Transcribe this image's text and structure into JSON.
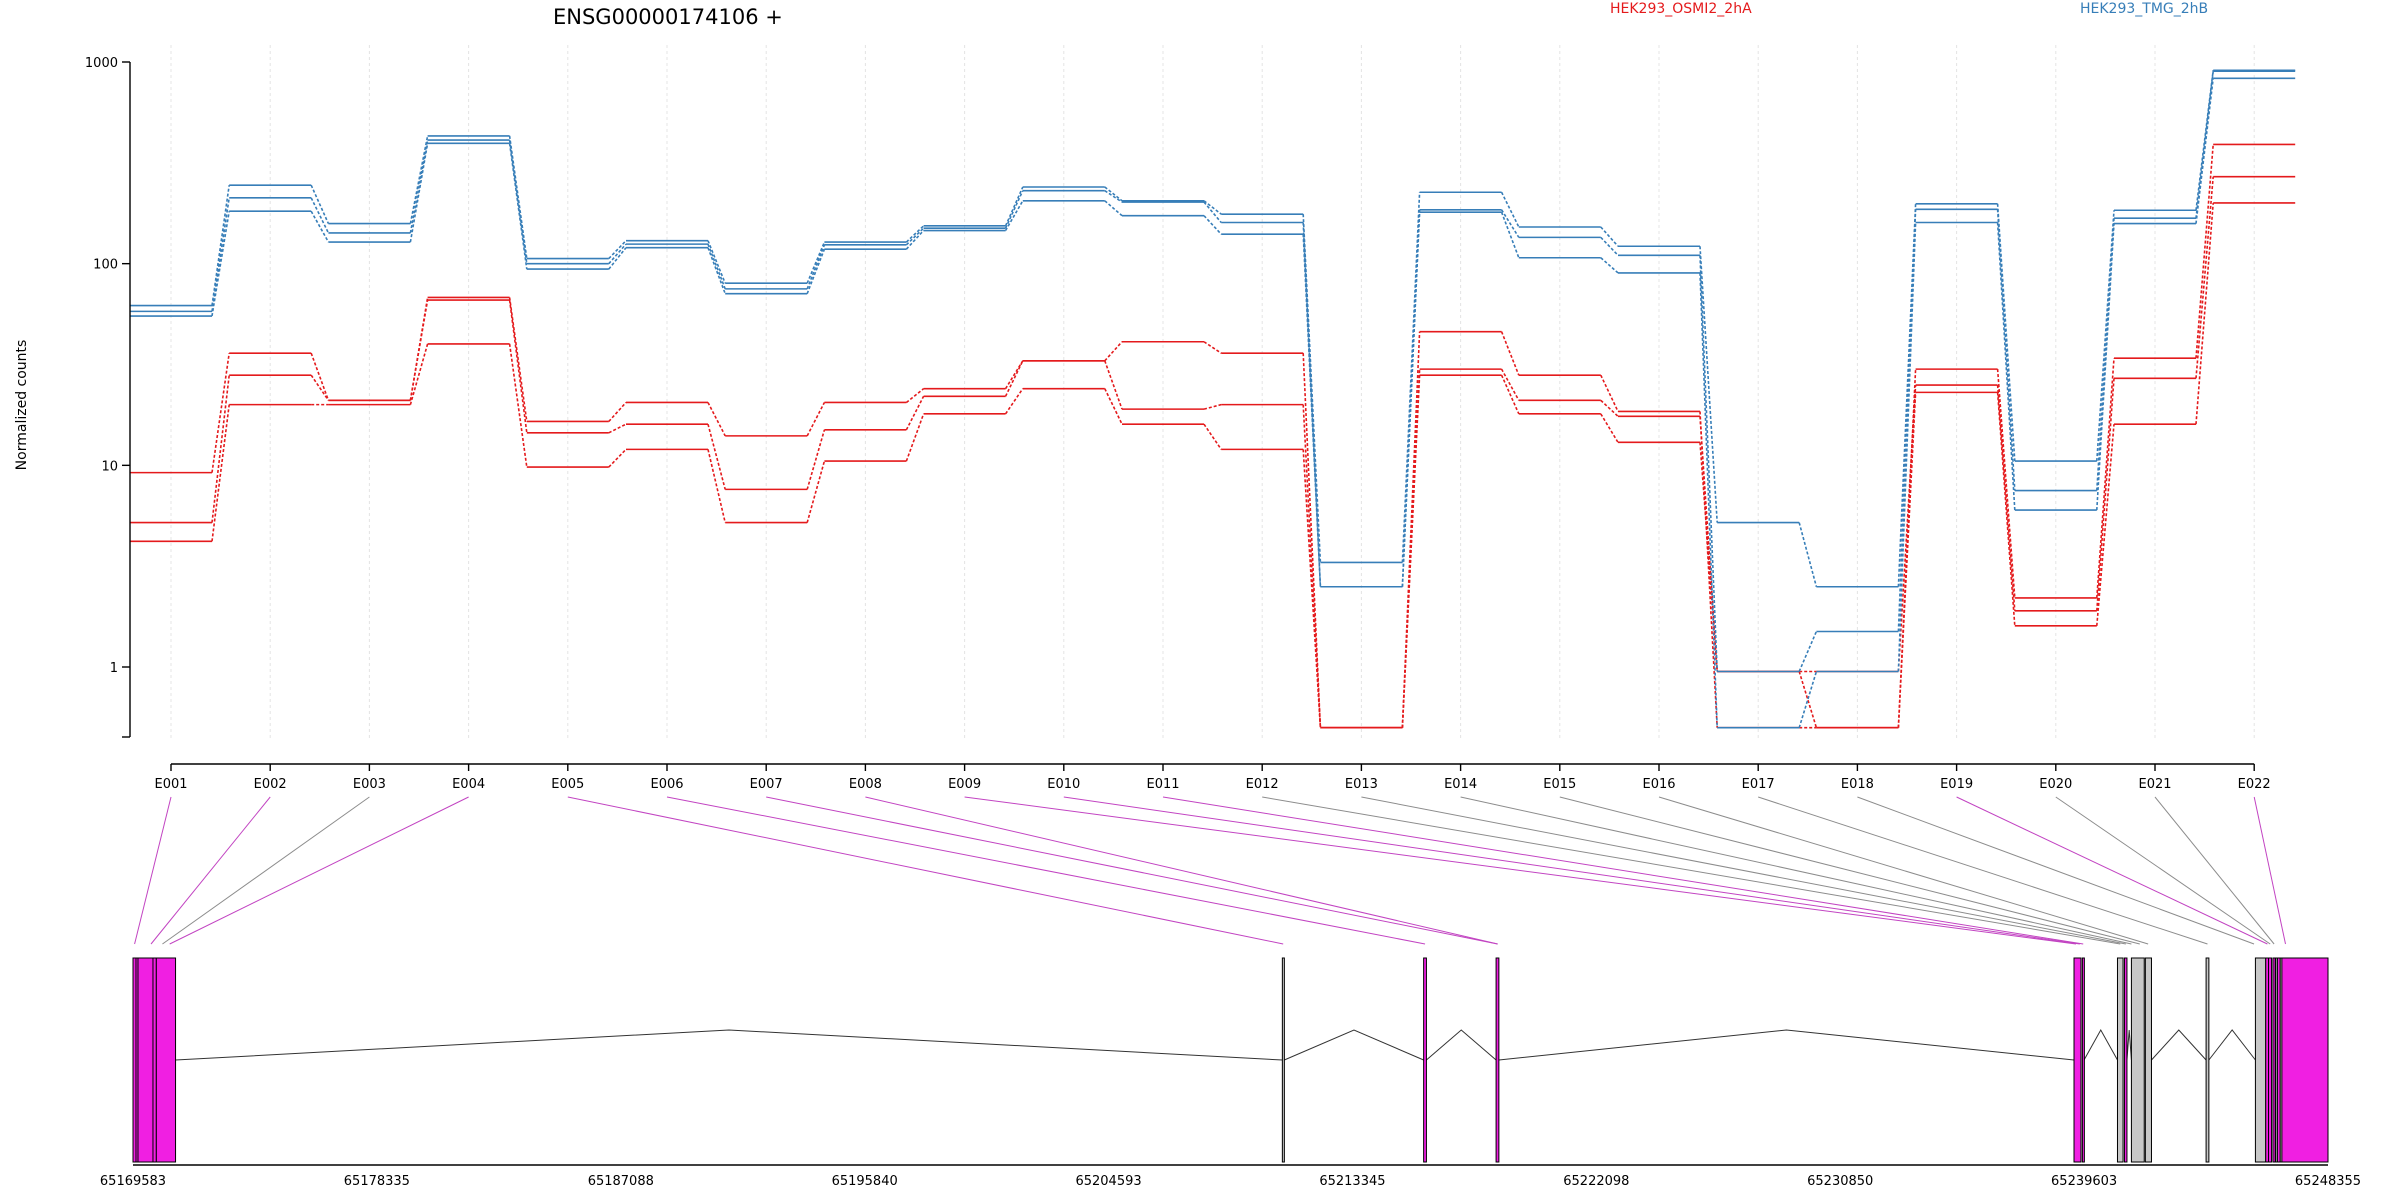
{
  "chart_data": {
    "type": "line",
    "title": "ENSG00000174106 +",
    "ylabel": "Normalized counts",
    "xlabel": "",
    "yscale": "log",
    "ylim": [
      0.5,
      1000
    ],
    "yticks": [
      "1",
      "10",
      "100",
      "1000"
    ],
    "grid": "vertical dashed at each exon",
    "legend_placement": "top-right",
    "categories": [
      "E001",
      "E002",
      "E003",
      "E004",
      "E005",
      "E006",
      "E007",
      "E008",
      "E009",
      "E010",
      "E011",
      "E012",
      "E013",
      "E014",
      "E015",
      "E016",
      "E017",
      "E018",
      "E019",
      "E020",
      "E021",
      "E022"
    ],
    "series_groups": [
      {
        "name": "HEK293_OSMI2_2hA",
        "color": "#e41a1c",
        "replicates": [
          [
            9.2,
            36,
            21,
            68,
            16.5,
            20.5,
            14,
            20.5,
            24,
            33,
            19,
            20,
            0.5,
            46,
            28,
            18.5,
            0.5,
            0.5,
            30,
            2.2,
            34,
            390
          ],
          [
            5.2,
            28,
            21,
            66,
            14.5,
            16,
            7.6,
            15,
            22,
            33,
            41,
            36,
            0.5,
            30,
            21,
            17.5,
            0.95,
            0.95,
            25,
            1.9,
            27,
            270
          ],
          [
            4.2,
            20,
            20,
            40,
            9.8,
            12,
            5.2,
            10.5,
            18,
            24,
            16,
            12,
            0.5,
            28,
            18,
            13,
            0.95,
            0.5,
            23,
            1.6,
            16,
            200
          ]
        ]
      },
      {
        "name": "HEK293_TMG_2hB",
        "color": "#377eb8",
        "replicates": [
          [
            62,
            245,
            158,
            430,
            106,
            130,
            80,
            128,
            154,
            240,
            205,
            176,
            3.3,
            226,
            152,
            122,
            5.2,
            2.5,
            198,
            10.5,
            184,
            910
          ],
          [
            58,
            212,
            142,
            410,
            100,
            125,
            75,
            124,
            150,
            230,
            202,
            160,
            2.5,
            185,
            135,
            110,
            0.95,
            1.5,
            186,
            7.5,
            168,
            900
          ],
          [
            55,
            182,
            128,
            395,
            94,
            120,
            71,
            118,
            146,
            205,
            173,
            140,
            2.5,
            180,
            107,
            90,
            0.5,
            0.95,
            160,
            6.0,
            158,
            830
          ]
        ]
      }
    ],
    "gene_model": {
      "coordinate_ticks": [
        "65169583",
        "65178335",
        "65187088",
        "65195840",
        "65204593",
        "65213345",
        "65222098",
        "65230850",
        "65239603",
        "65248355"
      ],
      "coord_range": [
        65169583,
        65248355
      ],
      "exons": [
        {
          "start": 65169583,
          "end": 65170300,
          "status": "significant"
        },
        {
          "start": 65170300,
          "end": 65170420,
          "status": "significant"
        },
        {
          "start": 65170420,
          "end": 65171110,
          "status": "significant"
        },
        {
          "start": 65169690,
          "end": 65169760,
          "status": "significant"
        },
        {
          "start": 65210830,
          "end": 65210900,
          "status": "normal"
        },
        {
          "start": 65215900,
          "end": 65216000,
          "status": "significant"
        },
        {
          "start": 65218500,
          "end": 65218600,
          "status": "significant"
        },
        {
          "start": 65239240,
          "end": 65239490,
          "status": "significant"
        },
        {
          "start": 65239540,
          "end": 65239600,
          "status": "significant"
        },
        {
          "start": 65240800,
          "end": 65241000,
          "status": "normal"
        },
        {
          "start": 65241050,
          "end": 65241140,
          "status": "significant"
        },
        {
          "start": 65241300,
          "end": 65241760,
          "status": "normal"
        },
        {
          "start": 65241800,
          "end": 65242020,
          "status": "normal"
        },
        {
          "start": 65243980,
          "end": 65244080,
          "status": "normal"
        },
        {
          "start": 65245750,
          "end": 65246120,
          "status": "normal"
        },
        {
          "start": 65246120,
          "end": 65246220,
          "status": "significant"
        },
        {
          "start": 65246220,
          "end": 65246330,
          "status": "significant"
        },
        {
          "start": 65246380,
          "end": 65246460,
          "status": "significant"
        },
        {
          "start": 65246480,
          "end": 65246540,
          "status": "normal"
        },
        {
          "start": 65246540,
          "end": 65246640,
          "status": "significant"
        },
        {
          "start": 65246640,
          "end": 65246700,
          "status": "normal"
        },
        {
          "start": 65246700,
          "end": 65248355,
          "status": "significant"
        }
      ],
      "bin_anchor_coords": [
        65169640,
        65170230,
        65170640,
        65170900,
        65210860,
        65215950,
        65218550,
        65218560,
        65239310,
        65239450,
        65239570,
        65240900,
        65241100,
        65241300,
        65241600,
        65241900,
        65244030,
        65245700,
        65246180,
        65246280,
        65246420,
        65246830
      ],
      "bin_link_status": [
        "significant",
        "significant",
        "normal",
        "significant",
        "significant",
        "significant",
        "significant",
        "significant",
        "significant",
        "significant",
        "significant",
        "normal",
        "normal",
        "normal",
        "normal",
        "normal",
        "normal",
        "normal",
        "significant",
        "normal",
        "normal",
        "significant"
      ]
    }
  },
  "colors": {
    "significant": "#f01fe2",
    "normal_exon": "#c8c8c8",
    "link_significant": "#c244c2",
    "link_normal": "#8c8c8c",
    "gridline": "#e4e4e4"
  }
}
